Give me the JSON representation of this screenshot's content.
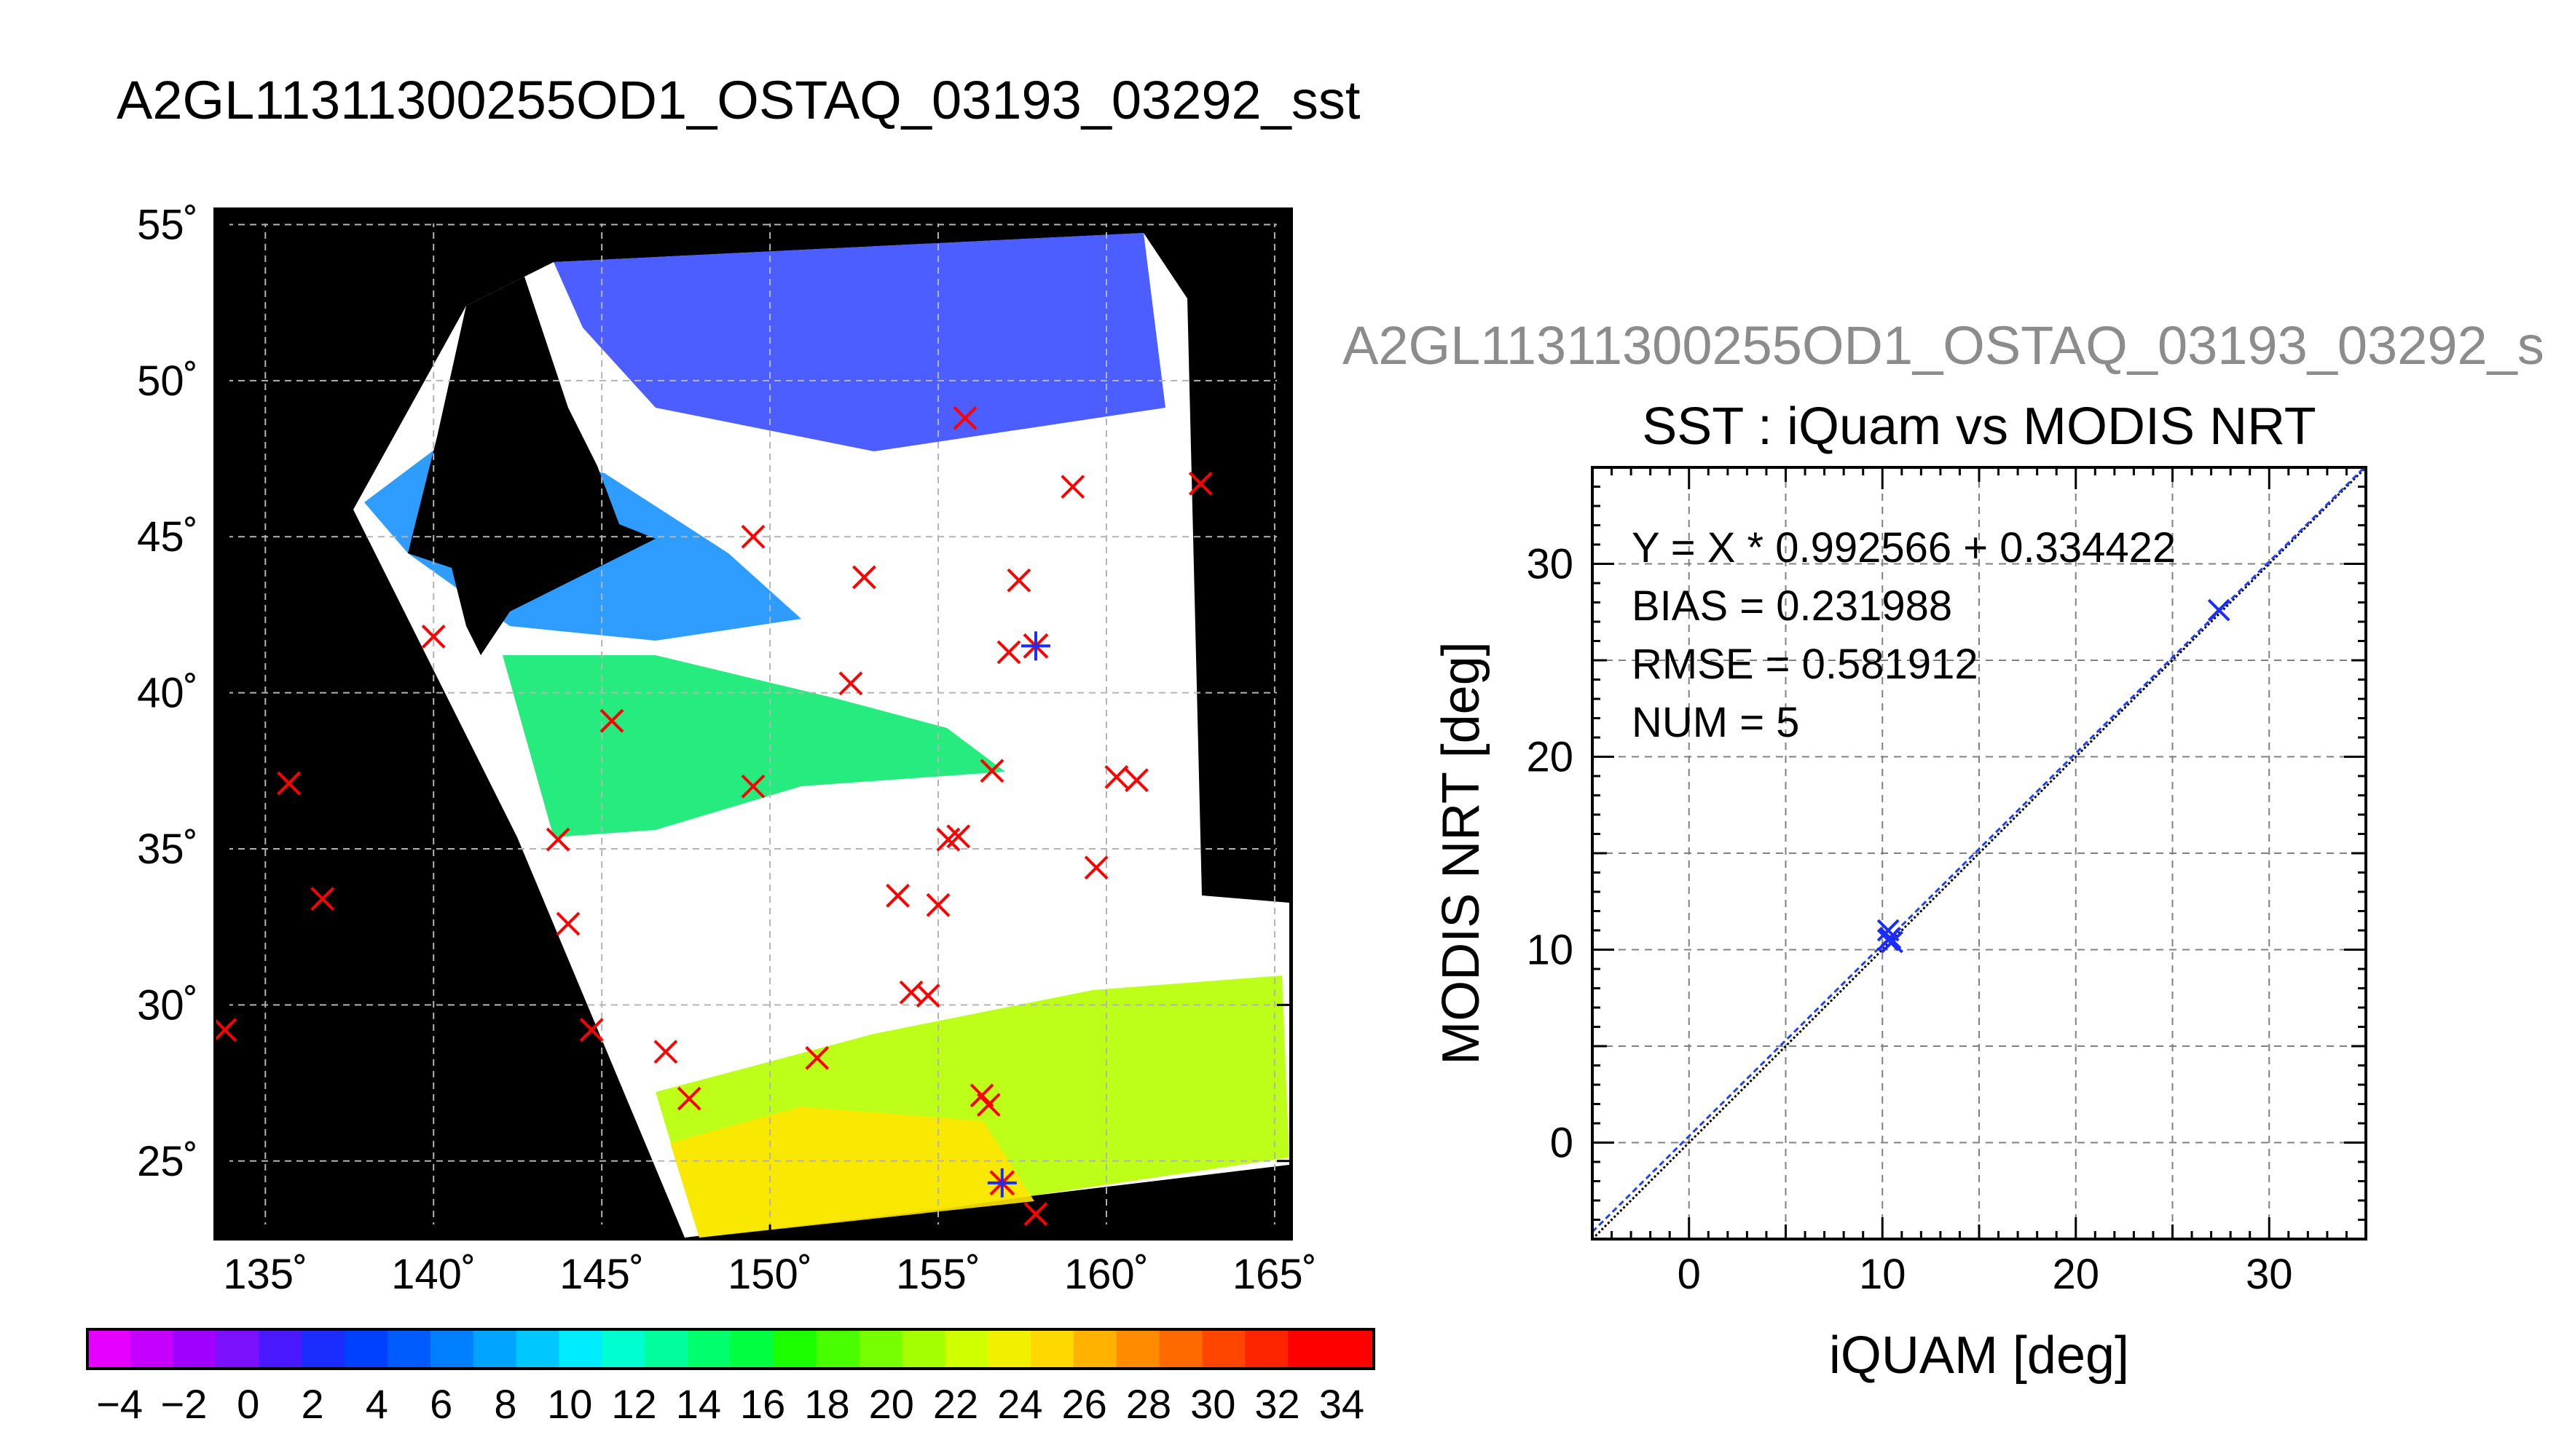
{
  "map_title": "A2GL11311300255OD1_OSTAQ_03193_03292_sst",
  "scatter_header": "A2GL11311300255OD1_OSTAQ_03193_03292_s",
  "chart_data": [
    {
      "type": "map",
      "title": "A2GL11311300255OD1_OSTAQ_03193_03292_sst",
      "xlim": [
        133.5,
        165.5
      ],
      "ylim": [
        22.5,
        55.5
      ],
      "x_ticks": [
        135,
        140,
        145,
        150,
        155,
        160,
        165
      ],
      "x_tick_labels": [
        "135˚",
        "140˚",
        "145˚",
        "150˚",
        "155˚",
        "160˚",
        "165˚"
      ],
      "y_ticks": [
        25,
        30,
        35,
        40,
        45,
        50,
        55
      ],
      "y_tick_labels": [
        "25˚",
        "30˚",
        "35˚",
        "40˚",
        "45˚",
        "50˚",
        "55˚"
      ],
      "grid": true,
      "colorbar": {
        "min": -5,
        "max": 35,
        "tick_values": [
          -4,
          -2,
          0,
          2,
          4,
          6,
          8,
          10,
          12,
          14,
          16,
          18,
          20,
          22,
          24,
          26,
          28,
          30,
          32,
          34
        ],
        "tick_labels": [
          "−4",
          "−2",
          "0",
          "2",
          "4",
          "6",
          "8",
          "10",
          "12",
          "14",
          "16",
          "18",
          "20",
          "22",
          "24",
          "26",
          "28",
          "30",
          "32",
          "34"
        ],
        "colors": [
          "#e500ff",
          "#c600ff",
          "#a000ff",
          "#7a10ff",
          "#4a18ff",
          "#1a2cff",
          "#0040ff",
          "#005cff",
          "#0080ff",
          "#00a4ff",
          "#00c8ff",
          "#00ecff",
          "#00ffd0",
          "#00ff9c",
          "#00ff6c",
          "#00ff40",
          "#1cff00",
          "#48ff00",
          "#76ff00",
          "#a4ff00",
          "#d0ff00",
          "#f0f000",
          "#ffd800",
          "#ffb200",
          "#ff8c00",
          "#ff6a00",
          "#ff4600",
          "#ff2400",
          "#ff0000",
          "#ff0000"
        ]
      },
      "matchups_red": [
        [
          133.8,
          29.2
        ],
        [
          135.7,
          37.1
        ],
        [
          136.7,
          33.4
        ],
        [
          140.0,
          41.8
        ],
        [
          143.7,
          35.3
        ],
        [
          144.0,
          32.6
        ],
        [
          144.7,
          29.2
        ],
        [
          145.3,
          39.1
        ],
        [
          146.9,
          28.5
        ],
        [
          147.6,
          27.0
        ],
        [
          149.5,
          45.0
        ],
        [
          149.5,
          37.0
        ],
        [
          151.4,
          28.3
        ],
        [
          152.4,
          40.3
        ],
        [
          152.8,
          43.7
        ],
        [
          153.8,
          33.5
        ],
        [
          154.2,
          30.4
        ],
        [
          154.7,
          30.3
        ],
        [
          155.0,
          33.2
        ],
        [
          155.3,
          35.3
        ],
        [
          155.6,
          35.4
        ],
        [
          155.8,
          48.8
        ],
        [
          156.3,
          27.1
        ],
        [
          156.5,
          26.8
        ],
        [
          156.6,
          37.5
        ],
        [
          157.1,
          41.3
        ],
        [
          157.4,
          43.6
        ],
        [
          157.9,
          23.3
        ],
        [
          159.0,
          46.6
        ],
        [
          159.7,
          34.4
        ],
        [
          160.3,
          37.3
        ],
        [
          160.9,
          37.2
        ],
        [
          162.8,
          46.7
        ]
      ],
      "matchups_blue": [
        [
          156.9,
          24.3
        ],
        [
          157.9,
          41.5
        ]
      ]
    },
    {
      "type": "scatter",
      "title": "SST : iQuam vs MODIS NRT",
      "xlabel": "iQUAM [deg]",
      "ylabel": "MODIS NRT [deg]",
      "xlim": [
        -5,
        35
      ],
      "ylim": [
        -5,
        35
      ],
      "x_ticks": [
        0,
        10,
        20,
        30
      ],
      "y_ticks": [
        0,
        10,
        20,
        30
      ],
      "grid": true,
      "stats": [
        "Y = X * 0.992566 + 0.334422",
        "BIAS = 0.231988",
        "RMSE = 0.581912",
        "NUM = 5"
      ],
      "regression": {
        "slope": 0.992566,
        "intercept": 0.334422
      },
      "points": [
        {
          "x": 10.3,
          "y": 11.0
        },
        {
          "x": 10.4,
          "y": 10.6
        },
        {
          "x": 10.5,
          "y": 10.4
        },
        {
          "x": 10.3,
          "y": 10.5
        },
        {
          "x": 27.4,
          "y": 27.6
        }
      ]
    }
  ]
}
